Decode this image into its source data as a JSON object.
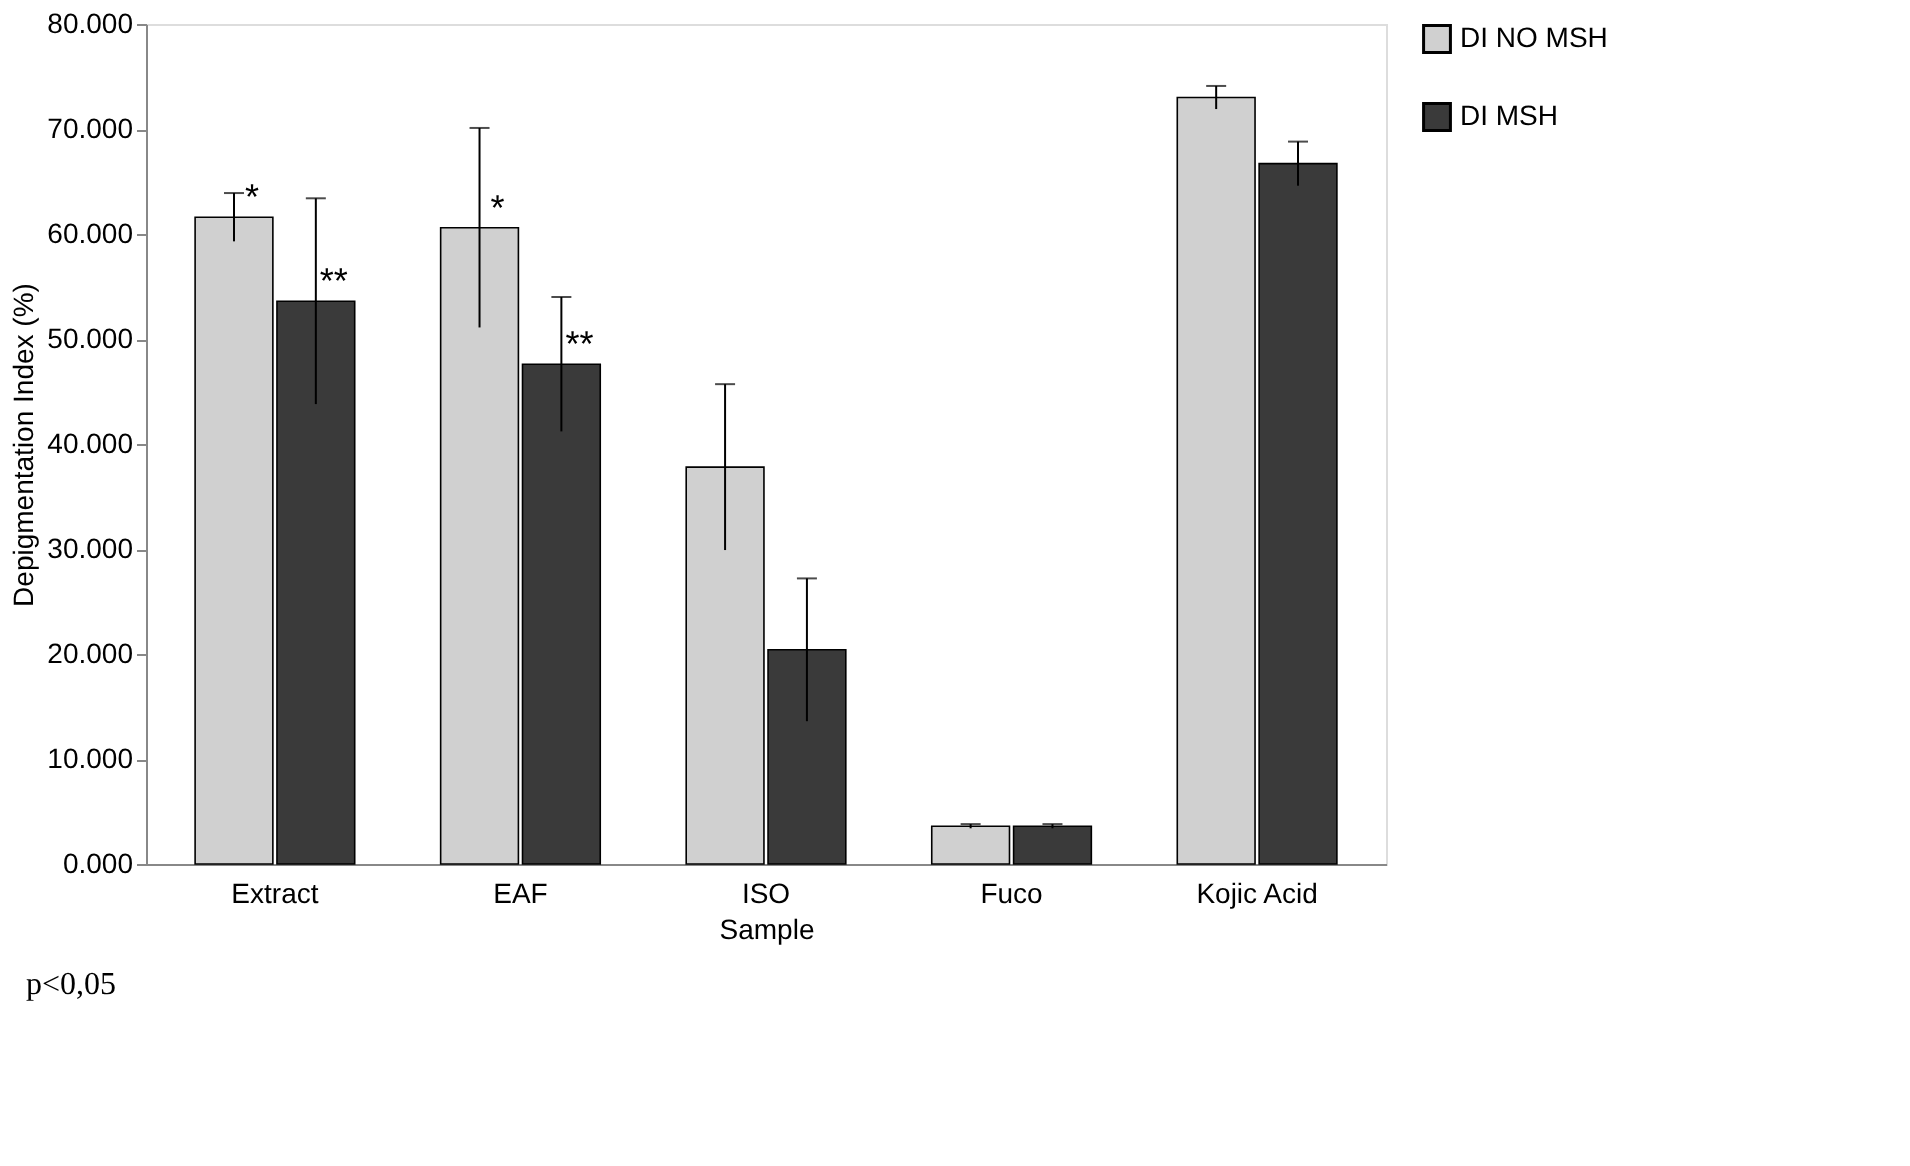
{
  "chart_data": {
    "type": "bar",
    "xlabel": "Sample",
    "ylabel": "Depigmentation Index (%)",
    "categories": [
      "Extract",
      "EAF",
      "ISO",
      "Fuco",
      "Kojic Acid"
    ],
    "series": [
      {
        "name": "DI NO MSH",
        "color": "#d0d0d0",
        "values": [
          61.6,
          60.6,
          37.8,
          3.6,
          73.0
        ],
        "errors": [
          2.3,
          9.5,
          7.9,
          0.2,
          1.1
        ]
      },
      {
        "name": "DI MSH",
        "color": "#3a3a3a",
        "values": [
          53.6,
          47.6,
          20.4,
          3.6,
          66.7
        ],
        "errors": [
          9.8,
          6.4,
          6.8,
          0.2,
          2.1
        ]
      }
    ],
    "ylim": [
      0,
      80
    ],
    "yticks": [
      {
        "value": 0,
        "label": "0.000"
      },
      {
        "value": 10,
        "label": "10.000"
      },
      {
        "value": 20,
        "label": "20.000"
      },
      {
        "value": 30,
        "label": "30.000"
      },
      {
        "value": 40,
        "label": "40.000"
      },
      {
        "value": 50,
        "label": "50.000"
      },
      {
        "value": 60,
        "label": "60.000"
      },
      {
        "value": 70,
        "label": "70.000"
      },
      {
        "value": 80,
        "label": "80.000"
      }
    ],
    "grid": false,
    "legend": "right",
    "annotations": [
      {
        "text": "*",
        "x": "Extract",
        "y": 61.6
      },
      {
        "text": "**",
        "x": "Extract",
        "y": 53.6
      },
      {
        "text": "*",
        "x": "EAF",
        "y": 60.6
      },
      {
        "text": "**",
        "x": "EAF",
        "y": 47.6
      },
      "p<0,05"
    ]
  }
}
